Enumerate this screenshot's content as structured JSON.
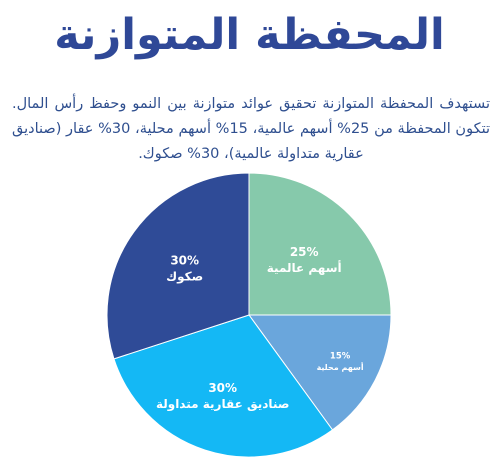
{
  "page": {
    "title": "المحفظة المتوازنة",
    "description": "تستهدف المحفظة المتوازنة تحقيق عوائد متوازنة بين النمو وحفظ رأس المال. تتكون المحفظة من 25% أسهم عالمية، 15% أسهم محلية، 30% عقار (صناديق عقارية متداولة عالمية)، 30% صكوك."
  },
  "colors": {
    "title": "#2f4897",
    "text": "#2f4f8f",
    "background": "#ffffff"
  },
  "chart_data": {
    "type": "pie",
    "start": "12 o'clock, clockwise",
    "slices": [
      {
        "label": "أسهم عالمية",
        "value": 25,
        "value_label": "25%",
        "color": "#86c9ab"
      },
      {
        "label": "أسهم محلية",
        "value": 15,
        "value_label": "15%",
        "color": "#6aa6dc"
      },
      {
        "label": "صناديق عقارية متداولة",
        "value": 30,
        "value_label": "30%",
        "color": "#14b8f5"
      },
      {
        "label": "صكوك",
        "value": 30,
        "value_label": "30%",
        "color": "#2f4b97"
      }
    ]
  }
}
